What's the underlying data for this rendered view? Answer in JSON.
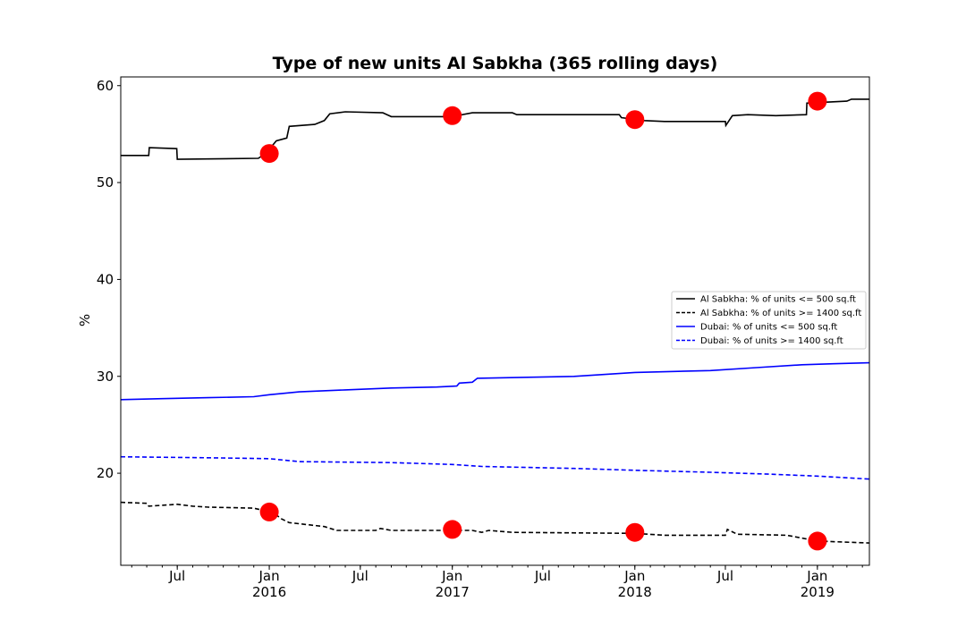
{
  "chart_data": {
    "type": "line",
    "title": "Type of new units Al Sabkha (365 rolling days)",
    "xlabel": "",
    "ylabel": "%",
    "x_range": [
      "2015-03-10",
      "2019-04-15"
    ],
    "ylim": [
      10.5,
      60.9
    ],
    "yticks": [
      20,
      30,
      40,
      50,
      60
    ],
    "xticks": [
      {
        "date": "2015-07-01",
        "label": "Jul",
        "year": ""
      },
      {
        "date": "2016-01-01",
        "label": "Jan",
        "year": "2016"
      },
      {
        "date": "2016-07-01",
        "label": "Jul",
        "year": ""
      },
      {
        "date": "2017-01-01",
        "label": "Jan",
        "year": "2017"
      },
      {
        "date": "2017-07-01",
        "label": "Jul",
        "year": ""
      },
      {
        "date": "2018-01-01",
        "label": "Jan",
        "year": "2018"
      },
      {
        "date": "2018-07-01",
        "label": "Jul",
        "year": ""
      },
      {
        "date": "2019-01-01",
        "label": "Jan",
        "year": "2019"
      }
    ],
    "grid": false,
    "legend_position": "center-right",
    "series": [
      {
        "name": "Al Sabkha: % of units <= 500 sq.ft",
        "color": "#000000",
        "style": "solid",
        "points": [
          [
            "2015-03-10",
            52.8
          ],
          [
            "2015-05-05",
            52.8
          ],
          [
            "2015-05-06",
            53.6
          ],
          [
            "2015-06-30",
            53.5
          ],
          [
            "2015-07-01",
            52.4
          ],
          [
            "2015-12-10",
            52.5
          ],
          [
            "2015-12-25",
            53.0
          ],
          [
            "2016-01-15",
            54.3
          ],
          [
            "2016-02-05",
            54.6
          ],
          [
            "2016-02-10",
            55.8
          ],
          [
            "2016-04-01",
            56.0
          ],
          [
            "2016-04-20",
            56.4
          ],
          [
            "2016-05-01",
            57.1
          ],
          [
            "2016-06-01",
            57.3
          ],
          [
            "2016-08-15",
            57.2
          ],
          [
            "2016-09-01",
            56.8
          ],
          [
            "2016-12-31",
            56.8
          ],
          [
            "2017-02-10",
            57.2
          ],
          [
            "2017-05-01",
            57.2
          ],
          [
            "2017-05-10",
            57.0
          ],
          [
            "2017-12-01",
            57.0
          ],
          [
            "2017-12-05",
            56.7
          ],
          [
            "2018-01-20",
            56.4
          ],
          [
            "2018-03-01",
            56.3
          ],
          [
            "2018-07-01",
            56.3
          ],
          [
            "2018-07-02",
            55.9
          ],
          [
            "2018-07-15",
            56.9
          ],
          [
            "2018-08-15",
            57.0
          ],
          [
            "2018-10-10",
            56.9
          ],
          [
            "2018-12-10",
            57.0
          ],
          [
            "2018-12-11",
            58.2
          ],
          [
            "2019-03-01",
            58.4
          ],
          [
            "2019-03-10",
            58.6
          ],
          [
            "2019-04-15",
            58.6
          ]
        ]
      },
      {
        "name": "Al Sabkha: % of units >= 1400 sq.ft",
        "color": "#000000",
        "style": "dashed",
        "points": [
          [
            "2015-03-10",
            17.0
          ],
          [
            "2015-05-01",
            16.9
          ],
          [
            "2015-05-05",
            16.6
          ],
          [
            "2015-07-01",
            16.8
          ],
          [
            "2015-08-01",
            16.6
          ],
          [
            "2015-09-01",
            16.5
          ],
          [
            "2015-12-01",
            16.4
          ],
          [
            "2016-01-10",
            15.9
          ],
          [
            "2016-01-25",
            15.3
          ],
          [
            "2016-02-10",
            14.9
          ],
          [
            "2016-04-20",
            14.5
          ],
          [
            "2016-05-15",
            14.1
          ],
          [
            "2016-08-01",
            14.1
          ],
          [
            "2016-08-10",
            14.3
          ],
          [
            "2016-09-01",
            14.1
          ],
          [
            "2017-02-10",
            14.1
          ],
          [
            "2017-03-01",
            13.9
          ],
          [
            "2017-03-15",
            14.1
          ],
          [
            "2017-05-01",
            13.9
          ],
          [
            "2017-12-31",
            13.8
          ],
          [
            "2018-03-01",
            13.6
          ],
          [
            "2018-07-01",
            13.6
          ],
          [
            "2018-07-05",
            14.2
          ],
          [
            "2018-07-25",
            13.7
          ],
          [
            "2018-11-01",
            13.6
          ],
          [
            "2019-01-01",
            13.0
          ],
          [
            "2019-04-15",
            12.8
          ]
        ]
      },
      {
        "name": "Dubai: % of units <= 500 sq.ft",
        "color": "#0000ff",
        "style": "solid",
        "points": [
          [
            "2015-03-10",
            27.6
          ],
          [
            "2015-06-01",
            27.7
          ],
          [
            "2015-09-01",
            27.8
          ],
          [
            "2015-12-01",
            27.9
          ],
          [
            "2016-01-01",
            28.1
          ],
          [
            "2016-03-01",
            28.4
          ],
          [
            "2016-06-01",
            28.6
          ],
          [
            "2016-09-01",
            28.8
          ],
          [
            "2016-12-01",
            28.9
          ],
          [
            "2017-01-10",
            29.0
          ],
          [
            "2017-01-15",
            29.3
          ],
          [
            "2017-02-10",
            29.4
          ],
          [
            "2017-02-20",
            29.8
          ],
          [
            "2017-06-01",
            29.9
          ],
          [
            "2017-09-01",
            30.0
          ],
          [
            "2018-01-01",
            30.4
          ],
          [
            "2018-06-01",
            30.6
          ],
          [
            "2018-09-01",
            30.9
          ],
          [
            "2018-12-01",
            31.2
          ],
          [
            "2019-02-01",
            31.3
          ],
          [
            "2019-04-15",
            31.4
          ]
        ]
      },
      {
        "name": "Dubai: % of units >= 1400 sq.ft",
        "color": "#0000ff",
        "style": "dashed",
        "points": [
          [
            "2015-03-10",
            21.7
          ],
          [
            "2015-09-01",
            21.6
          ],
          [
            "2016-01-01",
            21.5
          ],
          [
            "2016-03-01",
            21.2
          ],
          [
            "2016-09-01",
            21.1
          ],
          [
            "2017-01-01",
            20.9
          ],
          [
            "2017-03-01",
            20.7
          ],
          [
            "2017-09-01",
            20.5
          ],
          [
            "2018-01-01",
            20.3
          ],
          [
            "2018-06-01",
            20.1
          ],
          [
            "2018-10-01",
            19.9
          ],
          [
            "2019-01-01",
            19.7
          ],
          [
            "2019-04-15",
            19.4
          ]
        ]
      }
    ],
    "markers": {
      "color": "#ff0000",
      "points": [
        [
          "2016-01-01",
          53.0
        ],
        [
          "2017-01-01",
          56.9
        ],
        [
          "2018-01-01",
          56.5
        ],
        [
          "2019-01-01",
          58.4
        ],
        [
          "2016-01-01",
          16.0
        ],
        [
          "2017-01-01",
          14.2
        ],
        [
          "2018-01-01",
          13.9
        ],
        [
          "2019-01-01",
          13.0
        ]
      ]
    }
  }
}
